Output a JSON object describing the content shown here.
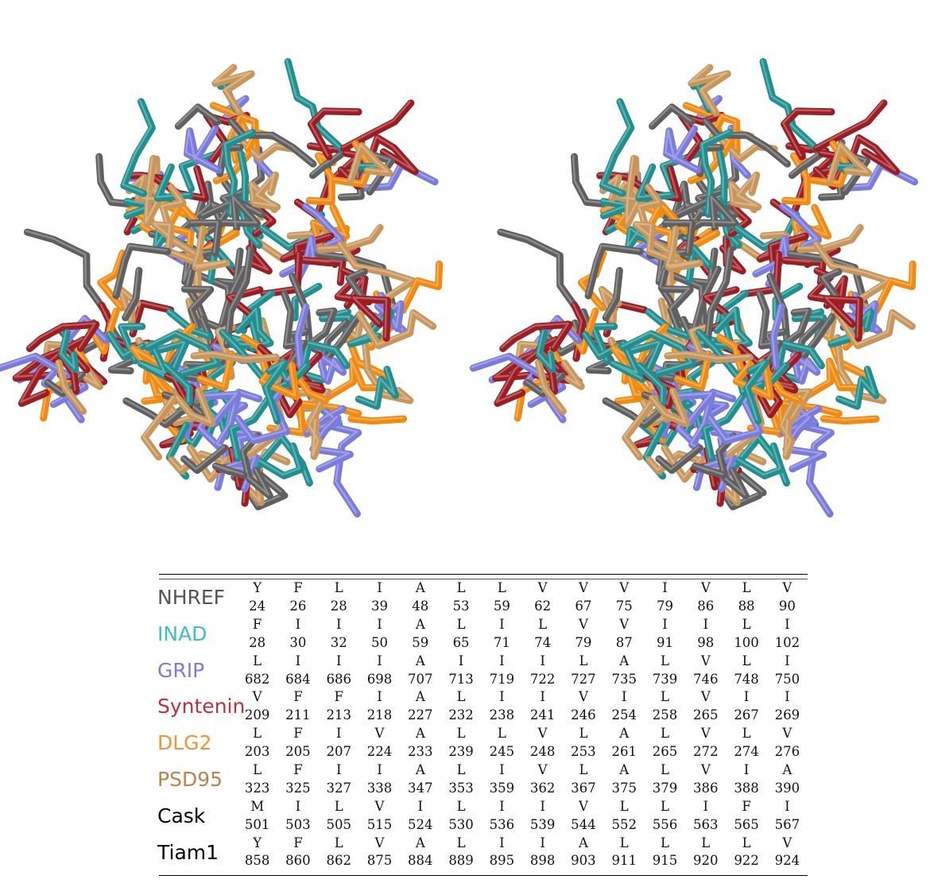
{
  "rows": [
    {
      "name": "NHREF",
      "color": "#555555",
      "residues": [
        "Y",
        "F",
        "L",
        "I",
        "A",
        "L",
        "L",
        "V",
        "V",
        "V",
        "I",
        "V",
        "L",
        "V"
      ],
      "numbers": [
        "24",
        "26",
        "28",
        "39",
        "48",
        "53",
        "59",
        "62",
        "67",
        "75",
        "79",
        "86",
        "88",
        "90"
      ]
    },
    {
      "name": "INAD",
      "color": "#3fbfbf",
      "residues": [
        "F",
        "I",
        "I",
        "I",
        "A",
        "L",
        "I",
        "L",
        "V",
        "V",
        "I",
        "I",
        "L",
        "I"
      ],
      "numbers": [
        "28",
        "30",
        "32",
        "50",
        "59",
        "65",
        "71",
        "74",
        "79",
        "87",
        "91",
        "98",
        "100",
        "102"
      ]
    },
    {
      "name": "GRIP",
      "color": "#7b7bdc",
      "residues": [
        "L",
        "I",
        "I",
        "I",
        "A",
        "I",
        "I",
        "I",
        "L",
        "A",
        "L",
        "V",
        "L",
        "I"
      ],
      "numbers": [
        "682",
        "684",
        "686",
        "698",
        "707",
        "713",
        "719",
        "722",
        "727",
        "735",
        "739",
        "746",
        "748",
        "750"
      ]
    },
    {
      "name": "Syntenin",
      "color": "#c0303a",
      "residues": [
        "V",
        "F",
        "F",
        "I",
        "A",
        "L",
        "I",
        "I",
        "V",
        "I",
        "L",
        "V",
        "I",
        "I"
      ],
      "numbers": [
        "209",
        "211",
        "213",
        "218",
        "227",
        "232",
        "238",
        "241",
        "246",
        "254",
        "258",
        "265",
        "267",
        "269"
      ]
    },
    {
      "name": "DLG2",
      "color": "#f0953a",
      "residues": [
        "L",
        "F",
        "I",
        "V",
        "A",
        "L",
        "L",
        "V",
        "L",
        "A",
        "L",
        "V",
        "L",
        "V"
      ],
      "numbers": [
        "203",
        "205",
        "207",
        "224",
        "233",
        "239",
        "245",
        "248",
        "253",
        "261",
        "265",
        "272",
        "274",
        "276"
      ]
    },
    {
      "name": "PSD95",
      "color": "#b8864a",
      "residues": [
        "L",
        "F",
        "I",
        "I",
        "A",
        "L",
        "I",
        "V",
        "L",
        "A",
        "L",
        "V",
        "I",
        "A"
      ],
      "numbers": [
        "323",
        "325",
        "327",
        "338",
        "347",
        "353",
        "359",
        "362",
        "367",
        "375",
        "379",
        "386",
        "388",
        "390"
      ]
    },
    {
      "name": "Cask",
      "color": "#000000",
      "residues": [
        "M",
        "I",
        "L",
        "V",
        "I",
        "L",
        "I",
        "I",
        "V",
        "L",
        "L",
        "I",
        "F",
        "I"
      ],
      "numbers": [
        "501",
        "503",
        "505",
        "515",
        "524",
        "530",
        "536",
        "539",
        "544",
        "552",
        "556",
        "563",
        "565",
        "567"
      ]
    },
    {
      "name": "Tiam1",
      "color": "#000000",
      "residues": [
        "Y",
        "F",
        "L",
        "V",
        "A",
        "L",
        "I",
        "I",
        "A",
        "L",
        "L",
        "L",
        "L",
        "V"
      ],
      "numbers": [
        "858",
        "860",
        "862",
        "875",
        "884",
        "889",
        "895",
        "898",
        "903",
        "911",
        "915",
        "920",
        "922",
        "924"
      ]
    }
  ],
  "stick_colors": [
    "#5f5f5f",
    "#1f8f8f",
    "#7b7bdc",
    "#9b1c22",
    "#f08a10",
    "#c8965a"
  ]
}
